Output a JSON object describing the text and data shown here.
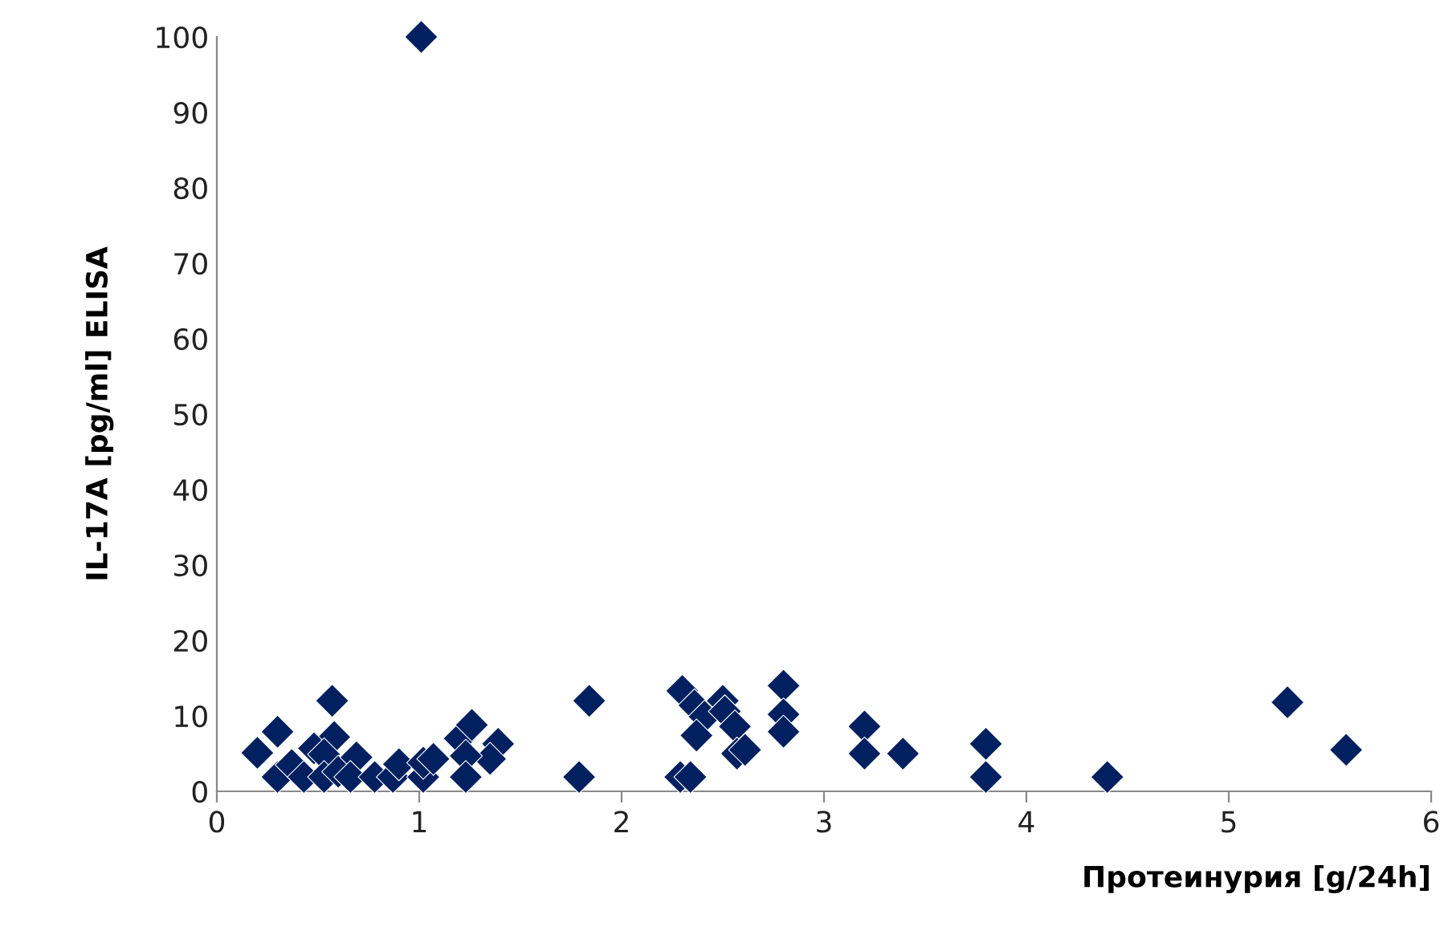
{
  "chart_data": {
    "type": "scatter",
    "xlabel": "Протеинурия [g/24h]",
    "ylabel": "IL-17A [pg/ml] ELISA",
    "marker": "diamond",
    "grid": false,
    "xlim": [
      0,
      6
    ],
    "xticks": [
      0,
      1,
      2,
      3,
      4,
      5,
      6
    ],
    "ylim": [
      0,
      100
    ],
    "yticks": [
      0,
      10,
      20,
      30,
      40,
      50,
      60,
      70,
      80,
      90,
      100
    ],
    "series": [
      {
        "color": "#002060",
        "x": [
          0.2,
          0.3,
          0.57,
          0.58,
          0.48,
          0.53,
          0.3,
          0.37,
          0.43,
          0.53,
          0.6,
          0.69,
          0.66,
          0.78,
          0.87,
          0.9,
          1.02,
          1.02,
          1.07,
          1.2,
          1.26,
          1.39,
          1.35,
          1.23,
          1.23,
          1.84,
          1.79,
          1.01,
          2.3,
          2.36,
          2.41,
          2.37,
          2.5,
          2.51,
          2.56,
          2.57,
          2.61,
          2.29,
          2.34,
          2.8,
          2.8,
          2.8,
          3.2,
          3.2,
          3.39,
          3.8,
          3.8,
          4.4,
          5.29,
          5.58
        ],
        "values": [
          5.1,
          7.9,
          12.0,
          7.2,
          5.7,
          4.9,
          1.9,
          3.5,
          1.9,
          1.9,
          2.6,
          4.5,
          1.9,
          1.9,
          1.9,
          3.6,
          1.9,
          3.8,
          4.3,
          7.0,
          8.8,
          6.3,
          4.3,
          4.7,
          1.9,
          12.0,
          1.9,
          100,
          13.3,
          11.4,
          9.9,
          7.4,
          12.0,
          10.6,
          8.6,
          5.0,
          5.5,
          1.9,
          1.9,
          14.0,
          10.2,
          7.9,
          8.6,
          5.0,
          5.0,
          6.3,
          1.9,
          1.9,
          11.8,
          5.5
        ]
      }
    ]
  }
}
